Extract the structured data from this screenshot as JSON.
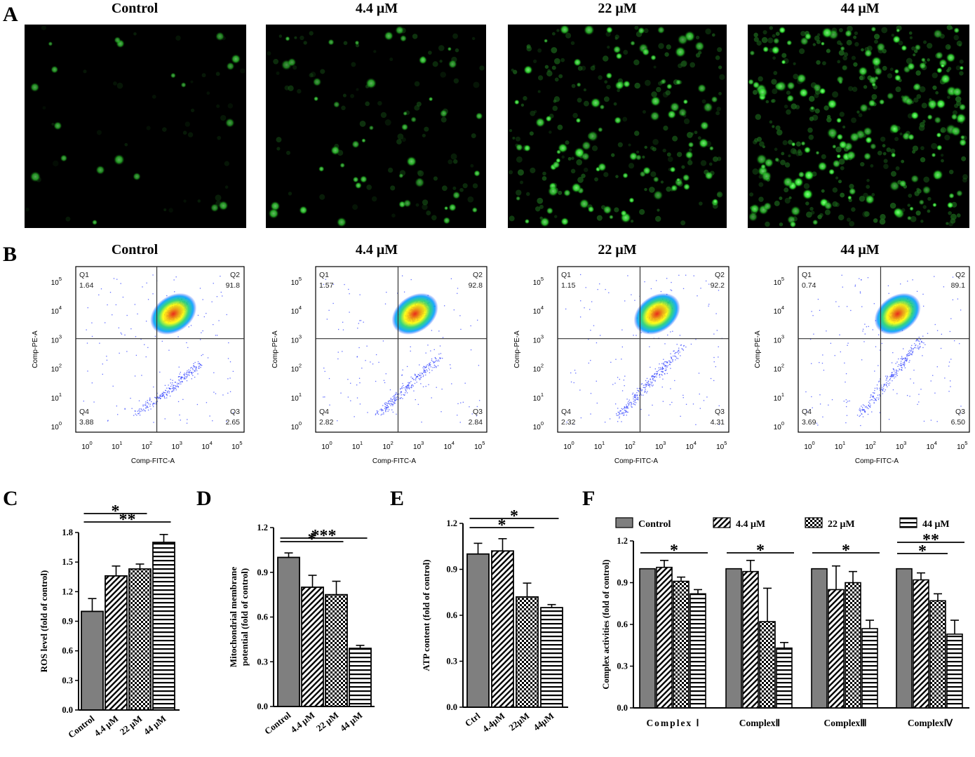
{
  "panel_letters": [
    "A",
    "B",
    "C",
    "D",
    "E",
    "F"
  ],
  "conditions": [
    "Control",
    "4.4 μM",
    "22 μM",
    "44 μM"
  ],
  "colors": {
    "bar_solid": "#7f7f7f",
    "fluor": "#39e639",
    "axis": "#000000"
  },
  "micrographs": [
    {
      "label": "Control",
      "cell_count": 20,
      "brightness": 0.35
    },
    {
      "label": "4.4 μM",
      "cell_count": 45,
      "brightness": 0.6
    },
    {
      "label": "22 μM",
      "cell_count": 95,
      "brightness": 0.85
    },
    {
      "label": "44 μM",
      "cell_count": 150,
      "brightness": 1.0
    }
  ],
  "chart_data": [
    {
      "id": "B",
      "type": "scatter",
      "subtype": "flow-cytometry-quadrant",
      "xlabel": "Comp-FITC-A",
      "ylabel": "Comp-PE-A",
      "axis_scale": "log",
      "tick_labels": [
        "10",
        "10",
        "10",
        "10",
        "10",
        "10"
      ],
      "tick_exponents": [
        "0",
        "1",
        "2",
        "3",
        "4",
        "5"
      ],
      "quadrant_names": [
        "Q1",
        "Q2",
        "Q3",
        "Q4"
      ],
      "plots": [
        {
          "title": "Control",
          "Q1": "1.64",
          "Q2": "91.8",
          "Q3": "2.65",
          "Q4": "3.88"
        },
        {
          "title": "4.4 μM",
          "Q1": "1.57",
          "Q2": "92.8",
          "Q3": "2.84",
          "Q4": "2.82"
        },
        {
          "title": "22 μM",
          "Q1": "1.15",
          "Q2": "92.2",
          "Q3": "4.31",
          "Q4": "2.32"
        },
        {
          "title": "44 μM",
          "Q1": "0.74",
          "Q2": "89.1",
          "Q3": "6.50",
          "Q4": "3.69"
        }
      ]
    },
    {
      "id": "C",
      "type": "bar",
      "ylabel": "ROS level (fold of control)",
      "categories": [
        "Control",
        "4.4 μM",
        "22 μM",
        "44 μM"
      ],
      "values": [
        1.0,
        1.36,
        1.43,
        1.7
      ],
      "errors": [
        0.13,
        0.1,
        0.05,
        0.08
      ],
      "patterns": [
        "solid",
        "diag",
        "check",
        "hstripe"
      ],
      "ylim": [
        0,
        1.8
      ],
      "yticks": [
        "0.0",
        "0.3",
        "0.6",
        "0.9",
        "1.2",
        "1.5",
        "1.8"
      ],
      "significance": [
        {
          "from": 0,
          "to": 2,
          "label": "*"
        },
        {
          "from": 0,
          "to": 3,
          "label": "**"
        }
      ]
    },
    {
      "id": "D",
      "type": "bar",
      "ylabel": "Mitochondrial membrane",
      "ylabel2": "potential (fold of control)",
      "categories": [
        "Control",
        "4.4 μM",
        "22 μM",
        "44 μM"
      ],
      "values": [
        1.0,
        0.8,
        0.75,
        0.39
      ],
      "errors": [
        0.03,
        0.08,
        0.09,
        0.02
      ],
      "patterns": [
        "solid",
        "diag",
        "check",
        "hstripe"
      ],
      "ylim": [
        0,
        1.2
      ],
      "yticks": [
        "0.0",
        "0.3",
        "0.6",
        "0.9",
        "1.2"
      ],
      "significance": [
        {
          "from": 0,
          "to": 2,
          "label": "*"
        },
        {
          "from": 0,
          "to": 3,
          "label": "***"
        }
      ]
    },
    {
      "id": "E",
      "type": "bar",
      "ylabel": "ATP content (fold of control)",
      "categories": [
        "Ctrl",
        "4.4μM",
        "22μM",
        "44μM"
      ],
      "values": [
        1.0,
        1.02,
        0.72,
        0.65
      ],
      "errors": [
        0.07,
        0.08,
        0.09,
        0.02
      ],
      "patterns": [
        "solid",
        "diag",
        "check",
        "hstripe"
      ],
      "ylim": [
        0,
        1.2
      ],
      "yticks": [
        "0.0",
        "0.3",
        "0.6",
        "0.9",
        "1.2"
      ],
      "significance": [
        {
          "from": 0,
          "to": 2,
          "label": "*"
        },
        {
          "from": 0,
          "to": 3,
          "label": "*"
        }
      ]
    },
    {
      "id": "F",
      "type": "bar",
      "ylabel": "Complex activities (fold of control)",
      "categories": [
        "Complex Ⅰ",
        "ComplexⅡ",
        "ComplexⅢ",
        "ComplexⅣ"
      ],
      "series": [
        {
          "name": "Control",
          "pattern": "solid",
          "values": [
            1.0,
            1.0,
            1.0,
            1.0
          ],
          "errors": [
            0,
            0,
            0,
            0
          ]
        },
        {
          "name": "4.4 μM",
          "pattern": "diag",
          "values": [
            1.01,
            0.98,
            0.85,
            0.92
          ],
          "errors": [
            0.05,
            0.08,
            0.17,
            0.05
          ]
        },
        {
          "name": "22 μM",
          "pattern": "check",
          "values": [
            0.91,
            0.62,
            0.9,
            0.77
          ],
          "errors": [
            0.03,
            0.24,
            0.08,
            0.05
          ]
        },
        {
          "name": "44 μM",
          "pattern": "hstripe",
          "values": [
            0.82,
            0.43,
            0.57,
            0.53
          ],
          "errors": [
            0.03,
            0.04,
            0.06,
            0.1
          ]
        }
      ],
      "ylim": [
        0,
        1.2
      ],
      "yticks": [
        "0.0",
        "0.3",
        "0.6",
        "0.9",
        "1.2"
      ],
      "significance": [
        {
          "group": 0,
          "from": 0,
          "to": 3,
          "label": "*"
        },
        {
          "group": 1,
          "from": 0,
          "to": 3,
          "label": "*"
        },
        {
          "group": 2,
          "from": 0,
          "to": 3,
          "label": "*"
        },
        {
          "group": 3,
          "from": 0,
          "to": 2,
          "label": "*"
        },
        {
          "group": 3,
          "from": 0,
          "to": 3,
          "label": "**"
        }
      ]
    }
  ]
}
